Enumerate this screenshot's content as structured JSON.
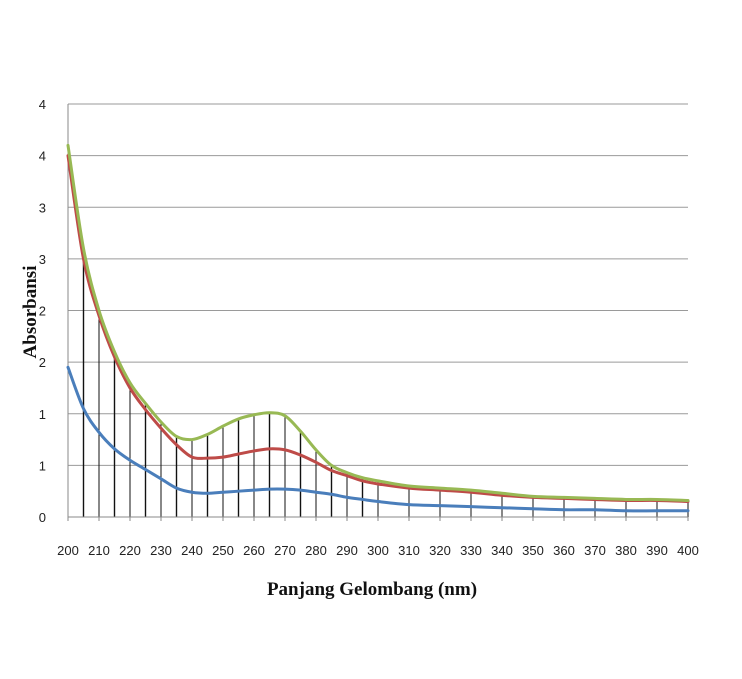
{
  "chart_data": {
    "type": "line",
    "title": "",
    "xlabel": "Panjang Gelombang (nm)",
    "ylabel": "Absorbansi",
    "xlim": [
      200,
      400
    ],
    "ylim": [
      0,
      4
    ],
    "x_ticks": [
      "200",
      "210",
      "220",
      "230",
      "240",
      "250",
      "260",
      "270",
      "280",
      "290",
      "300",
      "310",
      "320",
      "330",
      "340",
      "350",
      "360",
      "370",
      "380",
      "390",
      "400"
    ],
    "y_ticks": [
      "0",
      "1",
      "1",
      "2",
      "2",
      "3",
      "3",
      "4",
      "4"
    ],
    "y_tick_values": [
      0,
      0.5,
      1,
      1.5,
      2,
      2.5,
      3,
      3.5,
      4
    ],
    "grid": "horizontal",
    "legend": "none",
    "x": [
      200,
      205,
      210,
      215,
      220,
      225,
      230,
      235,
      240,
      245,
      250,
      255,
      260,
      265,
      270,
      275,
      280,
      285,
      290,
      295,
      300,
      310,
      320,
      330,
      340,
      350,
      360,
      370,
      380,
      390,
      400
    ],
    "series": [
      {
        "color": "#4a7ebb",
        "values": [
          1.45,
          1.05,
          0.82,
          0.66,
          0.55,
          0.46,
          0.37,
          0.28,
          0.24,
          0.23,
          0.24,
          0.25,
          0.26,
          0.27,
          0.27,
          0.26,
          0.24,
          0.22,
          0.19,
          0.17,
          0.15,
          0.12,
          0.11,
          0.1,
          0.09,
          0.08,
          0.07,
          0.07,
          0.06,
          0.06,
          0.06
        ]
      },
      {
        "color": "#be4b48",
        "values": [
          3.5,
          2.5,
          1.95,
          1.55,
          1.25,
          1.04,
          0.86,
          0.7,
          0.58,
          0.57,
          0.58,
          0.61,
          0.64,
          0.66,
          0.65,
          0.6,
          0.53,
          0.45,
          0.4,
          0.35,
          0.32,
          0.28,
          0.26,
          0.24,
          0.21,
          0.19,
          0.18,
          0.17,
          0.16,
          0.16,
          0.15
        ]
      },
      {
        "color": "#98b954",
        "values": [
          3.6,
          2.6,
          2.0,
          1.6,
          1.3,
          1.1,
          0.92,
          0.78,
          0.75,
          0.8,
          0.88,
          0.95,
          0.99,
          1.01,
          0.98,
          0.83,
          0.65,
          0.5,
          0.43,
          0.38,
          0.35,
          0.3,
          0.28,
          0.26,
          0.23,
          0.2,
          0.19,
          0.18,
          0.17,
          0.17,
          0.16
        ]
      }
    ]
  }
}
